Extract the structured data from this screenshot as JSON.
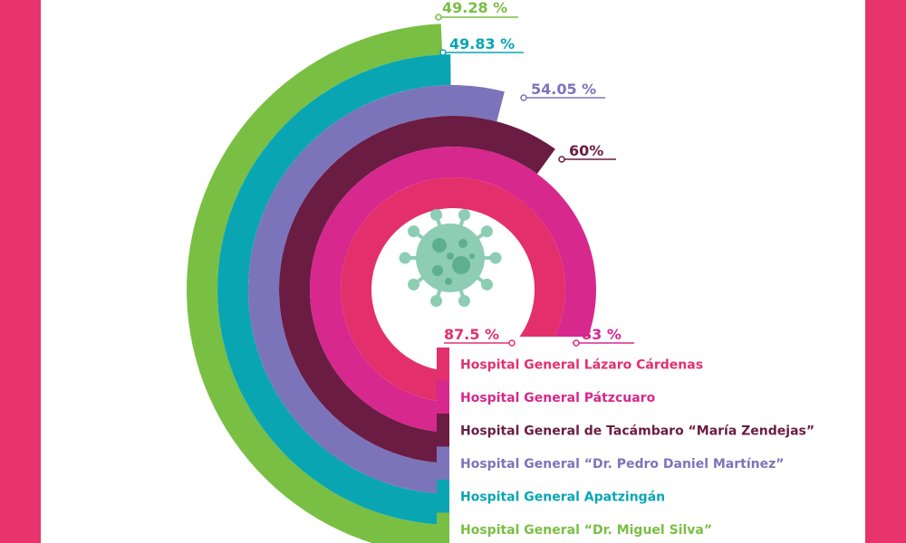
{
  "chart_data": {
    "type": "radial-bar",
    "title": "",
    "series": [
      {
        "name": "Hospital General Lázaro Cárdenas",
        "value": 87.5,
        "label": "87.5 %",
        "color": "#e3306c"
      },
      {
        "name": "Hospital General Pátzcuaro",
        "value": 83,
        "label": "83 %",
        "color": "#d6288d"
      },
      {
        "name": "Hospital General de Tacámbaro “María Zendejas”",
        "value": 60,
        "label": "60%",
        "color": "#6b1c43"
      },
      {
        "name": "Hospital General “Dr. Pedro Daniel Martínez”",
        "value": 54.05,
        "label": "54.05 %",
        "color": "#7c74bb"
      },
      {
        "name": "Hospital General Apatzingán",
        "value": 49.83,
        "label": "49.83 %",
        "color": "#0aa5b3"
      },
      {
        "name": "Hospital General “Dr. Miguel Silva”",
        "value": 49.28,
        "label": "49.28 %",
        "color": "#79bf43"
      }
    ]
  },
  "icon": {
    "name": "virus-icon",
    "color": "#8ccdb4"
  }
}
